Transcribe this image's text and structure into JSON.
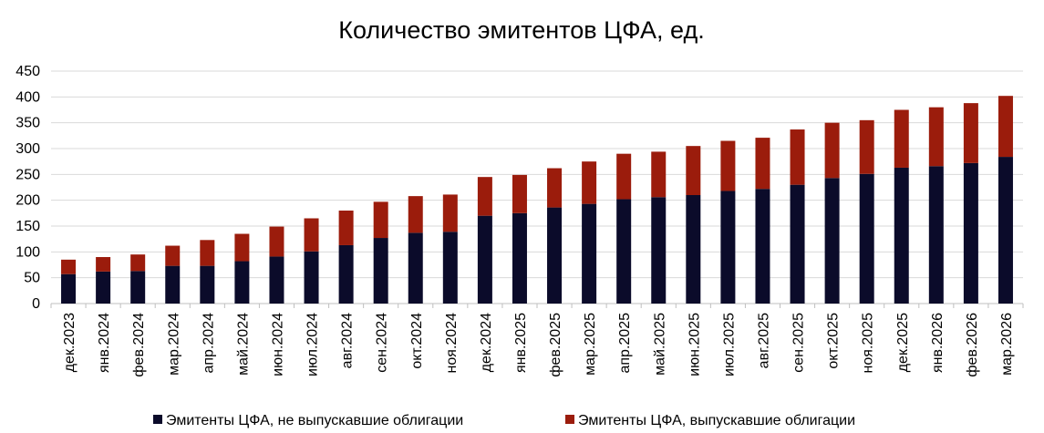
{
  "chart_data": {
    "type": "bar",
    "stacked": true,
    "title": "Количество эмитентов ЦФА, ед.",
    "xlabel": "",
    "ylabel": "",
    "ylim": [
      0,
      450
    ],
    "yticks": [
      0,
      50,
      100,
      150,
      200,
      250,
      300,
      350,
      400,
      450
    ],
    "grid": true,
    "legend_position": "bottom",
    "categories": [
      "дек.2023",
      "янв.2024",
      "фев.2024",
      "мар.2024",
      "апр.2024",
      "май.2024",
      "июн.2024",
      "июл.2024",
      "авг.2024",
      "сен.2024",
      "окт.2024",
      "ноя.2024",
      "дек.2024",
      "янв.2025",
      "фев.2025",
      "мар.2025",
      "апр.2025",
      "май.2025",
      "июн.2025",
      "июл.2025",
      "авг.2025",
      "сен.2025",
      "окт.2025",
      "ноя.2025",
      "дек.2025",
      "янв.2026",
      "фев.2026",
      "мар.2026"
    ],
    "series": [
      {
        "name": "Эмитенты ЦФА, не выпускавшие облигации",
        "color": "#0b0b2a",
        "values": [
          57,
          62,
          63,
          73,
          73,
          82,
          91,
          101,
          113,
          127,
          137,
          139,
          170,
          175,
          186,
          193,
          202,
          206,
          210,
          218,
          222,
          230,
          243,
          251,
          263,
          266,
          272,
          284
        ]
      },
      {
        "name": "Эмитенты ЦФА, выпускавшие облигации",
        "color": "#9b1c0c",
        "values": [
          28,
          28,
          32,
          39,
          50,
          53,
          58,
          64,
          67,
          70,
          71,
          72,
          75,
          74,
          76,
          82,
          88,
          88,
          95,
          97,
          99,
          107,
          107,
          104,
          112,
          114,
          116,
          118
        ]
      }
    ]
  }
}
